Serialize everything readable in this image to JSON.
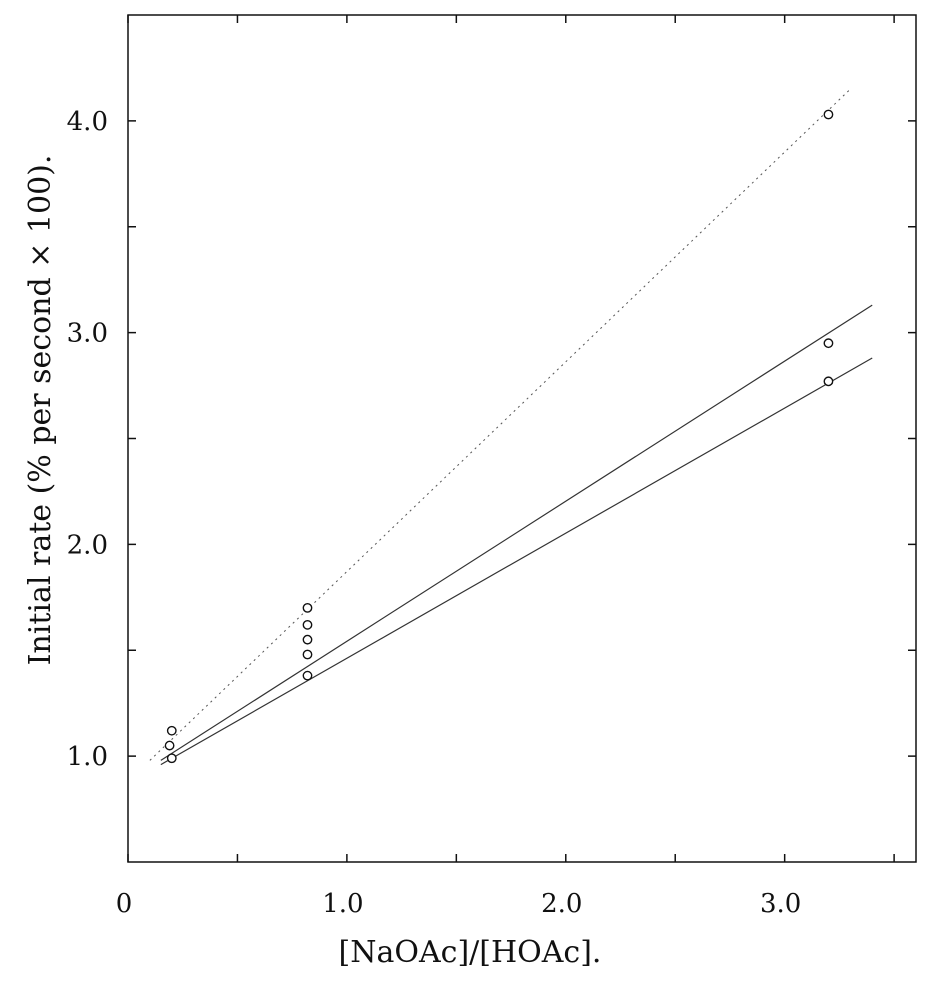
{
  "chart_data": {
    "type": "scatter",
    "xlabel": "[NaOAc]/[HOAc].",
    "ylabel": "Initial rate (% per second × 100).",
    "xlim": [
      0,
      3.6
    ],
    "ylim": [
      0.5,
      4.5
    ],
    "x_ticks": [
      0,
      1.0,
      2.0,
      3.0
    ],
    "x_tick_labels": [
      "0",
      "1.0",
      "2.0",
      "3.0"
    ],
    "y_ticks": [
      1.0,
      2.0,
      3.0,
      4.0
    ],
    "y_tick_labels": [
      "1.0",
      "2.0",
      "3.0",
      "4.0"
    ],
    "minor_x_ticks": [
      0.5,
      1.5,
      2.5,
      3.5
    ],
    "minor_y_ticks": [
      1.5,
      2.5,
      3.5
    ],
    "grid": false,
    "points": [
      {
        "x": 0.2,
        "y": 1.12
      },
      {
        "x": 0.19,
        "y": 1.05
      },
      {
        "x": 0.2,
        "y": 0.99
      },
      {
        "x": 0.82,
        "y": 1.7
      },
      {
        "x": 0.82,
        "y": 1.62
      },
      {
        "x": 0.82,
        "y": 1.55
      },
      {
        "x": 0.82,
        "y": 1.48
      },
      {
        "x": 0.82,
        "y": 1.38
      },
      {
        "x": 3.2,
        "y": 4.03
      },
      {
        "x": 3.2,
        "y": 2.95
      },
      {
        "x": 3.2,
        "y": 2.77
      }
    ],
    "lines": [
      {
        "style": "dashed",
        "x": [
          0.1,
          3.3
        ],
        "y": [
          0.98,
          4.15
        ]
      },
      {
        "style": "solid",
        "x": [
          0.15,
          3.4
        ],
        "y": [
          0.98,
          3.13
        ]
      },
      {
        "style": "solid",
        "x": [
          0.15,
          3.4
        ],
        "y": [
          0.96,
          2.88
        ]
      }
    ]
  }
}
